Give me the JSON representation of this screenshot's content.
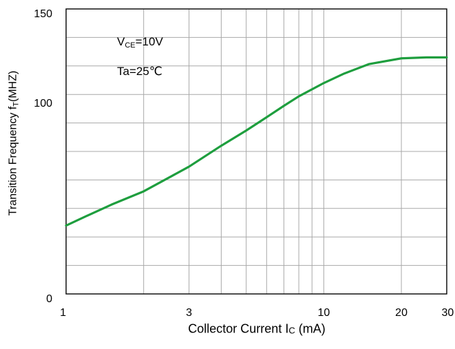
{
  "chart_data": {
    "type": "line",
    "xscale": "log",
    "xlim": [
      1,
      30
    ],
    "ylim": [
      0,
      150
    ],
    "grid": true,
    "x_ticks": [
      {
        "value": 1,
        "label": "1"
      },
      {
        "value": 3,
        "label": "3"
      },
      {
        "value": 10,
        "label": "10"
      },
      {
        "value": 20,
        "label": "20"
      },
      {
        "value": 30,
        "label": "30"
      }
    ],
    "y_ticks": [
      {
        "value": 0,
        "label": "0"
      },
      {
        "value": 100,
        "label": "100"
      },
      {
        "value": 150,
        "label": "150"
      }
    ],
    "xlabel": {
      "main": "Collector Current I",
      "sub": "C",
      "tail": " (mA)"
    },
    "ylabel": {
      "main": "Transition Frequency f",
      "sub": "T",
      "tail": "(MHZ)"
    },
    "annotations": {
      "vce": {
        "main": "V",
        "sub": "CE",
        "tail": "=10V"
      },
      "ta": "Ta=25℃"
    },
    "series": [
      {
        "color": "#1e9e3e",
        "x": [
          1.0,
          1.2,
          1.5,
          2.0,
          3.0,
          4.0,
          5.0,
          6.0,
          7.0,
          8.0,
          10.0,
          12.0,
          15.0,
          20.0,
          25.0,
          30.0
        ],
        "y": [
          36,
          41,
          47,
          54,
          67,
          78,
          86,
          93,
          99,
          104,
          111,
          116,
          121,
          124,
          124.5,
          124.5
        ]
      }
    ]
  }
}
